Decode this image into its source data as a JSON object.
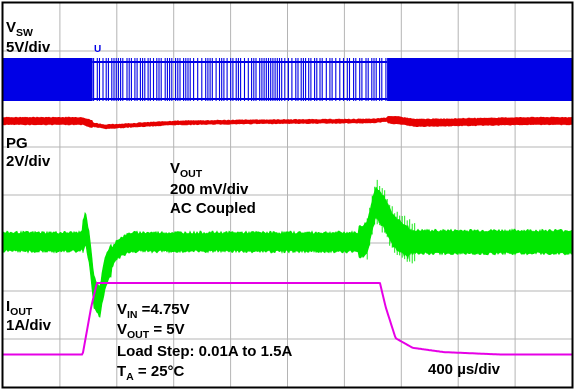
{
  "colors": {
    "vsw": "#0000e6",
    "pg": "#e60000",
    "vout": "#00e600",
    "iout": "#e600e6",
    "grid": "#b4b4b4",
    "frame": "#000000",
    "background": "#ffffff"
  },
  "chart_data": {
    "type": "line",
    "title": "",
    "x": {
      "divisions": 10,
      "per_div": "400 µs/div",
      "range_us": [
        0,
        4000
      ]
    },
    "y": {
      "divisions": 8
    },
    "grid": true,
    "trigger_marker": "U",
    "series": [
      {
        "name": "V",
        "subscript": "SW",
        "scale": "5V/div",
        "kind": "switching",
        "dense_spans_us": [
          [
            0,
            630
          ],
          [
            2700,
            4000
          ]
        ],
        "sparse_span_us": [
          630,
          2700
        ]
      },
      {
        "name": "PG",
        "scale": "2V/div",
        "kind": "ripple-band",
        "points_us_v": [
          [
            0,
            0
          ],
          [
            560,
            0
          ],
          [
            640,
            -0.16
          ],
          [
            720,
            -0.24
          ],
          [
            900,
            -0.18
          ],
          [
            1200,
            -0.08
          ],
          [
            1800,
            -0.03
          ],
          [
            2600,
            0
          ],
          [
            2700,
            0.06
          ],
          [
            2790,
            0.02
          ],
          [
            2900,
            -0.08
          ],
          [
            3200,
            -0.05
          ],
          [
            3700,
            0
          ],
          [
            4000,
            0
          ]
        ]
      },
      {
        "name": "V",
        "subscript": "OUT",
        "scale": "200 mV/div",
        "coupling": "AC Coupled",
        "kind": "ripple-band",
        "points_us_mv": [
          [
            0,
            0
          ],
          [
            550,
            0
          ],
          [
            580,
            60
          ],
          [
            610,
            -40
          ],
          [
            640,
            -210
          ],
          [
            680,
            -250
          ],
          [
            720,
            -120
          ],
          [
            800,
            -30
          ],
          [
            900,
            0
          ],
          [
            2520,
            0
          ],
          [
            2560,
            20
          ],
          [
            2620,
            170
          ],
          [
            2680,
            120
          ],
          [
            2750,
            40
          ],
          [
            2850,
            0
          ],
          [
            4000,
            0
          ]
        ]
      },
      {
        "name": "I",
        "subscript": "OUT",
        "scale": "1A/div",
        "kind": "line",
        "points_us_a": [
          [
            0,
            0.01
          ],
          [
            560,
            0.01
          ],
          [
            620,
            1.0
          ],
          [
            660,
            1.5
          ],
          [
            2650,
            1.5
          ],
          [
            2690,
            1.0
          ],
          [
            2760,
            0.35
          ],
          [
            2880,
            0.15
          ],
          [
            3100,
            0.06
          ],
          [
            3500,
            0.01
          ],
          [
            4000,
            0.01
          ]
        ]
      }
    ],
    "annotations": {
      "vsw_name": "V",
      "vsw_sub": "SW",
      "vsw_scale": "5V/div",
      "pg_name": "PG",
      "pg_scale": "2V/div",
      "vout_name": "V",
      "vout_sub": "OUT",
      "vout_scale": "200 mV/div",
      "vout_coupling": "AC Coupled",
      "iout_name": "I",
      "iout_sub": "OUT",
      "iout_scale": "1A/div",
      "cond_vin_name": "V",
      "cond_vin_sub": "IN",
      "cond_vin_value": " =4.75V",
      "cond_vout_name": "V",
      "cond_vout_sub": "OUT",
      "cond_vout_value": " = 5V",
      "cond_load": "Load Step: 0.01A to 1.5A",
      "cond_ta_name": "T",
      "cond_ta_sub": "A",
      "cond_ta_value": " = 25°C",
      "timebase": "400 µs/div"
    }
  }
}
